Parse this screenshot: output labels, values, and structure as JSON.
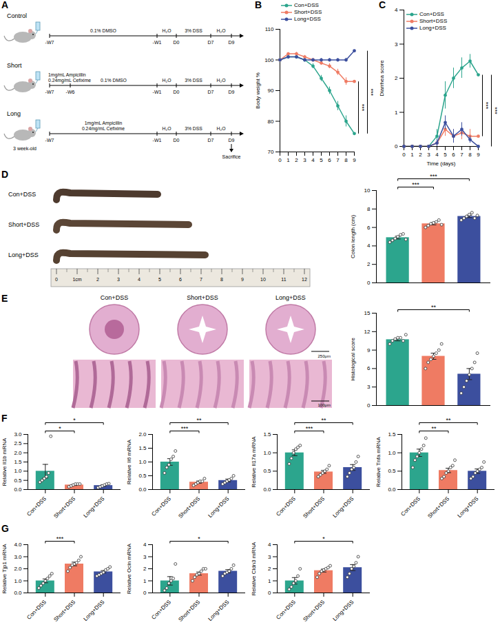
{
  "diagram": {
    "panel": "A",
    "axis": [
      "-W7",
      "-W6",
      "-W1",
      "D0",
      "D7",
      "D9"
    ],
    "rows": [
      {
        "label": "Control",
        "ticks": [
          "-W7",
          "-W1",
          "D0",
          "D7",
          "D9"
        ],
        "segments": [
          {
            "from": "-W7",
            "to": "-W1",
            "label": [
              "0.1% DMSO"
            ]
          },
          {
            "from": "-W1",
            "to": "D0",
            "label": [
              "H₂O"
            ]
          },
          {
            "from": "D0",
            "to": "D7",
            "label": [
              "3% DSS"
            ]
          },
          {
            "from": "D7",
            "to": "D9",
            "label": [
              "H₂O"
            ]
          }
        ]
      },
      {
        "label": "Short",
        "ticks": [
          "-W7",
          "-W6",
          "-W1",
          "D0",
          "D7",
          "D9"
        ],
        "segments": [
          {
            "from": "-W7",
            "to": "-W6",
            "label": [
              "1mg/mL Ampicillin",
              "0.24mg/mL Cefixime"
            ]
          },
          {
            "from": "-W6",
            "to": "-W1",
            "label": [
              "0.1% DMSO"
            ]
          },
          {
            "from": "-W1",
            "to": "D0",
            "label": [
              "H₂O"
            ]
          },
          {
            "from": "D0",
            "to": "D7",
            "label": [
              "3% DSS"
            ]
          },
          {
            "from": "D7",
            "to": "D9",
            "label": [
              "H₂O"
            ]
          }
        ]
      },
      {
        "label": "Long",
        "note": "3 week-old",
        "ticks": [
          "-W7",
          "-W1",
          "D0",
          "D7",
          "D9"
        ],
        "segments": [
          {
            "from": "-W7",
            "to": "-W1",
            "label": [
              "1mg/mL Ampicillin",
              "0.24mg/mL Cefixime"
            ]
          },
          {
            "from": "-W1",
            "to": "D0",
            "label": [
              "H₂O"
            ]
          },
          {
            "from": "D0",
            "to": "D7",
            "label": [
              "3% DSS"
            ]
          },
          {
            "from": "D7",
            "to": "D9",
            "label": [
              "H₂O"
            ]
          }
        ]
      }
    ],
    "end_marker": {
      "row": "Long",
      "at": "D9",
      "label": "Sacrifice"
    }
  },
  "photos": [
    {
      "panel": "D",
      "labels": [
        "Con+DSS",
        "Short+DSS",
        "Long+DSS"
      ],
      "ruler": [
        "0",
        "1cm",
        "2",
        "3",
        "4",
        "5",
        "6",
        "7",
        "8",
        "9",
        "10",
        "11",
        "12"
      ]
    },
    {
      "panel": "E",
      "labels": [
        "Con+DSS",
        "Short+DSS",
        "Long+DSS"
      ],
      "scale_bars": [
        "250μm",
        "100μm"
      ]
    }
  ],
  "chart_data": [
    {
      "panel": "B",
      "type": "line",
      "ylabel": "Body weight %",
      "x": [
        0,
        1,
        2,
        3,
        4,
        5,
        6,
        7,
        8,
        9
      ],
      "xlim": [
        0,
        9
      ],
      "xticks": [
        0,
        1,
        2,
        3,
        4,
        5,
        6,
        7,
        8,
        9
      ],
      "ylim": [
        70,
        110
      ],
      "yticks": [
        70,
        80,
        90,
        100,
        110
      ],
      "grid": false,
      "legend": "top",
      "marker": "circle",
      "series": [
        {
          "name": "Con+DSS",
          "color": "#2ca58d",
          "values": [
            100,
            101,
            101,
            100,
            98,
            94,
            90,
            85,
            80,
            76
          ],
          "errors": [
            0,
            0.5,
            0.6,
            0.6,
            0.8,
            1.0,
            1.2,
            1.5,
            1.8,
            2.5
          ]
        },
        {
          "name": "Short+DSS",
          "color": "#ef7b63",
          "values": [
            100,
            102,
            102,
            101,
            100,
            99,
            98,
            96,
            93,
            93
          ],
          "errors": [
            0,
            0.4,
            0.5,
            0.5,
            0.6,
            0.7,
            0.8,
            1.0,
            1.2,
            1.3
          ]
        },
        {
          "name": "Long+DSS",
          "color": "#3c4f9e",
          "values": [
            100,
            101,
            101,
            100,
            100,
            100,
            100,
            100,
            100,
            103
          ],
          "errors": [
            0,
            0.4,
            0.4,
            0.4,
            0.4,
            0.5,
            0.5,
            0.5,
            0.6,
            0.6
          ]
        }
      ],
      "annotations": [
        {
          "between": [
            "Con+DSS",
            "Short+DSS"
          ],
          "label": "***"
        },
        {
          "between": [
            "Con+DSS",
            "Long+DSS"
          ],
          "label": "***"
        }
      ]
    },
    {
      "panel": "C",
      "type": "line",
      "xlabel": "Time (days)",
      "ylabel": "Diarrhea score",
      "x": [
        0,
        1,
        2,
        3,
        4,
        5,
        6,
        7,
        8,
        9
      ],
      "xlim": [
        0,
        9
      ],
      "xticks": [
        0,
        1,
        2,
        3,
        4,
        5,
        6,
        7,
        8,
        9
      ],
      "ylim": [
        0,
        4
      ],
      "yticks": [
        0,
        1,
        2,
        3,
        4
      ],
      "grid": false,
      "legend": "top-left",
      "marker": "circle",
      "series": [
        {
          "name": "Con+DSS",
          "color": "#2ca58d",
          "values": [
            0,
            0,
            0,
            0,
            0.3,
            1.5,
            2.0,
            2.3,
            2.5,
            2.1
          ],
          "errors": [
            0,
            0,
            0,
            0,
            0.2,
            0.4,
            0.3,
            0.3,
            0.2,
            0.3
          ]
        },
        {
          "name": "Short+DSS",
          "color": "#ef7b63",
          "values": [
            0,
            0,
            0,
            0,
            0.1,
            0.5,
            0.3,
            0.4,
            0.3,
            0.3
          ],
          "errors": [
            0,
            0,
            0,
            0,
            0.1,
            0.2,
            0.2,
            0.2,
            0.2,
            0.2
          ]
        },
        {
          "name": "Long+DSS",
          "color": "#3c4f9e",
          "values": [
            0,
            0,
            0,
            0,
            0.1,
            0.7,
            0.3,
            0.5,
            0.2,
            0
          ],
          "errors": [
            0,
            0,
            0,
            0,
            0.1,
            0.2,
            0.2,
            0.2,
            0.1,
            0
          ]
        }
      ],
      "annotations": [
        {
          "between": [
            "Con+DSS",
            "Short+DSS"
          ],
          "label": "***"
        },
        {
          "between": [
            "Con+DSS",
            "Long+DSS"
          ],
          "label": "***"
        }
      ]
    },
    {
      "type": "bar",
      "ylabel": "Colon length (cm)",
      "categories": [
        "Con+DSS",
        "Short+DSS",
        "Long+DSS"
      ],
      "values": [
        4.9,
        6.4,
        7.2
      ],
      "errors": [
        0.15,
        0.12,
        0.13
      ],
      "points": [
        [
          4.4,
          4.6,
          4.8,
          5.0,
          5.2,
          5.3,
          4.7
        ],
        [
          6.0,
          6.2,
          6.4,
          6.5,
          6.6,
          6.8,
          6.3
        ],
        [
          6.8,
          7.0,
          7.2,
          7.4,
          7.6,
          7.0,
          7.3
        ]
      ],
      "colors": [
        "#2ca58d",
        "#ef7b63",
        "#3c4f9e"
      ],
      "ylim": [
        0,
        10
      ],
      "yticks": [
        0,
        2,
        4,
        6,
        8,
        10
      ],
      "tick_labels": "y",
      "grid": false,
      "annotations": [
        {
          "between": [
            "Con+DSS",
            "Short+DSS"
          ],
          "label": "***"
        },
        {
          "between": [
            "Con+DSS",
            "Long+DSS"
          ],
          "label": "***"
        }
      ]
    },
    {
      "type": "bar",
      "ylabel": "Histological score",
      "categories": [
        "Con+DSS",
        "Short+DSS",
        "Long+DSS"
      ],
      "values": [
        10.7,
        8.0,
        5.1
      ],
      "errors": [
        0.2,
        0.5,
        0.9
      ],
      "points": [
        [
          10,
          10.5,
          10.8,
          11,
          11,
          10.5,
          11.5
        ],
        [
          6,
          7,
          7.5,
          8,
          8.5,
          9,
          10
        ],
        [
          2,
          3,
          4,
          5,
          6,
          7,
          8.5
        ]
      ],
      "colors": [
        "#2ca58d",
        "#ef7b63",
        "#3c4f9e"
      ],
      "ylim": [
        0,
        15
      ],
      "yticks": [
        0,
        3,
        6,
        9,
        12,
        15
      ],
      "tick_labels": "y",
      "grid": false,
      "annotations": [
        {
          "between": [
            "Con+DSS",
            "Long+DSS"
          ],
          "label": "**"
        }
      ]
    },
    {
      "panel": "F",
      "type": "bar",
      "ylabel": "Relative Il1b mRNA",
      "categories": [
        "Con+DSS",
        "Short+DSS",
        "Long+DSS"
      ],
      "values": [
        1.0,
        0.25,
        0.22
      ],
      "errors": [
        0.37,
        0.03,
        0.04
      ],
      "points": [
        [
          0.4,
          0.5,
          0.6,
          0.7,
          0.9,
          2.9
        ],
        [
          0.15,
          0.2,
          0.25,
          0.3,
          0.3,
          0.3
        ],
        [
          0.1,
          0.15,
          0.2,
          0.25,
          0.3,
          0.32
        ]
      ],
      "colors": [
        "#2ca58d",
        "#ef7b63",
        "#3c4f9e"
      ],
      "ylim": [
        0,
        3
      ],
      "yticks": [
        {
          "value": 0,
          "label": "0.0"
        },
        0.5,
        {
          "value": 1,
          "label": "1.0"
        },
        1.5,
        {
          "value": 2,
          "label": "2.0"
        },
        2.5,
        {
          "value": 3,
          "label": "3.0"
        }
      ],
      "grid": false,
      "annotations": [
        {
          "between": [
            "Con+DSS",
            "Short+DSS"
          ],
          "label": "*"
        },
        {
          "between": [
            "Con+DSS",
            "Long+DSS"
          ],
          "label": "*"
        }
      ]
    },
    {
      "type": "bar",
      "ylabel": "Relative Il6 mRNA",
      "categories": [
        "Con+DSS",
        "Short+DSS",
        "Long+DSS"
      ],
      "values": [
        1.0,
        0.27,
        0.33
      ],
      "errors": [
        0.12,
        0.04,
        0.05
      ],
      "points": [
        [
          0.6,
          0.8,
          0.9,
          1.1,
          1.2,
          1.4
        ],
        [
          0.15,
          0.2,
          0.25,
          0.3,
          0.3,
          0.4
        ],
        [
          0.2,
          0.25,
          0.3,
          0.35,
          0.4,
          0.5
        ]
      ],
      "colors": [
        "#2ca58d",
        "#ef7b63",
        "#3c4f9e"
      ],
      "ylim": [
        0,
        2
      ],
      "yticks": [
        {
          "value": 0,
          "label": "0.0"
        },
        0.5,
        {
          "value": 1,
          "label": "1.0"
        },
        1.5,
        {
          "value": 2,
          "label": "2.0"
        }
      ],
      "grid": false,
      "annotations": [
        {
          "between": [
            "Con+DSS",
            "Short+DSS"
          ],
          "label": "***"
        },
        {
          "between": [
            "Con+DSS",
            "Long+DSS"
          ],
          "label": "**"
        }
      ]
    },
    {
      "type": "bar",
      "ylabel": "Relative Il17a mRNA",
      "categories": [
        "Con+DSS",
        "Short+DSS",
        "Long+DSS"
      ],
      "values": [
        1.0,
        0.48,
        0.6
      ],
      "errors": [
        0.08,
        0.04,
        0.08
      ],
      "points": [
        [
          0.7,
          0.85,
          1.0,
          1.1,
          1.15,
          1.2
        ],
        [
          0.35,
          0.4,
          0.45,
          0.5,
          0.55,
          0.65
        ],
        [
          0.35,
          0.45,
          0.55,
          0.6,
          0.75,
          0.9
        ]
      ],
      "colors": [
        "#2ca58d",
        "#ef7b63",
        "#3c4f9e"
      ],
      "ylim": [
        0,
        1.5
      ],
      "yticks": [
        {
          "value": 0,
          "label": "0.0"
        },
        0.5,
        {
          "value": 1,
          "label": "1.0"
        },
        1.5
      ],
      "grid": false,
      "annotations": [
        {
          "between": [
            "Con+DSS",
            "Short+DSS"
          ],
          "label": "***"
        },
        {
          "between": [
            "Con+DSS",
            "Long+DSS"
          ],
          "label": "**"
        }
      ]
    },
    {
      "type": "bar",
      "ylabel": "Relative Tnfa mRNA",
      "categories": [
        "Con+DSS",
        "Short+DSS",
        "Long+DSS"
      ],
      "values": [
        1.0,
        0.52,
        0.5
      ],
      "errors": [
        0.1,
        0.06,
        0.06
      ],
      "points": [
        [
          0.6,
          0.8,
          0.9,
          1.0,
          1.1,
          1.2,
          1.4
        ],
        [
          0.3,
          0.35,
          0.45,
          0.5,
          0.6,
          0.65,
          0.8
        ],
        [
          0.3,
          0.35,
          0.45,
          0.5,
          0.55,
          0.6,
          0.75
        ]
      ],
      "colors": [
        "#2ca58d",
        "#ef7b63",
        "#3c4f9e"
      ],
      "ylim": [
        0,
        1.5
      ],
      "yticks": [
        {
          "value": 0,
          "label": "0.0"
        },
        0.5,
        {
          "value": 1,
          "label": "1.0"
        },
        1.5
      ],
      "grid": false,
      "annotations": [
        {
          "between": [
            "Con+DSS",
            "Short+DSS"
          ],
          "label": "**"
        },
        {
          "between": [
            "Con+DSS",
            "Long+DSS"
          ],
          "label": "**"
        }
      ]
    },
    {
      "panel": "G",
      "type": "bar",
      "ylabel": "Relative Tjp1 mRNA",
      "categories": [
        "Con+DSS",
        "Short+DSS",
        "Long+DSS"
      ],
      "values": [
        1.0,
        2.4,
        1.75
      ],
      "errors": [
        0.16,
        0.15,
        0.1
      ],
      "points": [
        [
          0.4,
          0.6,
          0.8,
          1.0,
          1.2,
          1.4,
          1.6
        ],
        [
          1.8,
          2.1,
          2.3,
          2.4,
          2.5,
          2.7,
          3.0
        ],
        [
          1.4,
          1.5,
          1.6,
          1.7,
          1.9,
          2.0,
          2.15
        ]
      ],
      "colors": [
        "#2ca58d",
        "#ef7b63",
        "#3c4f9e"
      ],
      "ylim": [
        0,
        4
      ],
      "yticks": [
        {
          "value": 0,
          "label": "0.0"
        },
        {
          "value": 1,
          "label": "1.0"
        },
        {
          "value": 2,
          "label": "2.0"
        },
        {
          "value": 3,
          "label": "3.0"
        },
        {
          "value": 4,
          "label": "4.0"
        }
      ],
      "grid": false,
      "annotations": [
        {
          "between": [
            "Con+DSS",
            "Short+DSS"
          ],
          "label": "***"
        }
      ]
    },
    {
      "type": "bar",
      "ylabel": "Relative Ocln mRNA",
      "categories": [
        "Con+DSS",
        "Short+DSS",
        "Long+DSS"
      ],
      "values": [
        1.0,
        1.6,
        1.8
      ],
      "errors": [
        0.35,
        0.13,
        0.13
      ],
      "points": [
        [
          0.2,
          0.4,
          0.8,
          1.0,
          1.2,
          2.4
        ],
        [
          1.0,
          1.3,
          1.5,
          1.6,
          1.8,
          2.0,
          2.0
        ],
        [
          1.4,
          1.6,
          1.7,
          1.8,
          2.0,
          2.3
        ]
      ],
      "colors": [
        "#2ca58d",
        "#ef7b63",
        "#3c4f9e"
      ],
      "ylim": [
        0,
        4
      ],
      "yticks": [
        0,
        1,
        2,
        3,
        4
      ],
      "grid": false,
      "annotations": [
        {
          "between": [
            "Con+DSS",
            "Long+DSS"
          ],
          "label": "*"
        }
      ]
    },
    {
      "type": "bar",
      "ylabel": "Relative Cldn3 mRNA",
      "categories": [
        "Con+DSS",
        "Short+DSS",
        "Long+DSS"
      ],
      "values": [
        1.0,
        1.85,
        2.1
      ],
      "errors": [
        0.27,
        0.12,
        0.25
      ],
      "points": [
        [
          0.3,
          0.5,
          0.8,
          1.0,
          1.4,
          2.0
        ],
        [
          1.3,
          1.6,
          1.8,
          1.9,
          2.0,
          2.1,
          2.25
        ],
        [
          1.3,
          1.6,
          2.0,
          2.2,
          2.5,
          3.0
        ]
      ],
      "colors": [
        "#2ca58d",
        "#ef7b63",
        "#3c4f9e"
      ],
      "ylim": [
        0,
        4
      ],
      "yticks": [
        0,
        1,
        2,
        3,
        4
      ],
      "grid": false,
      "annotations": [
        {
          "between": [
            "Con+DSS",
            "Long+DSS"
          ],
          "label": "*"
        }
      ]
    }
  ]
}
